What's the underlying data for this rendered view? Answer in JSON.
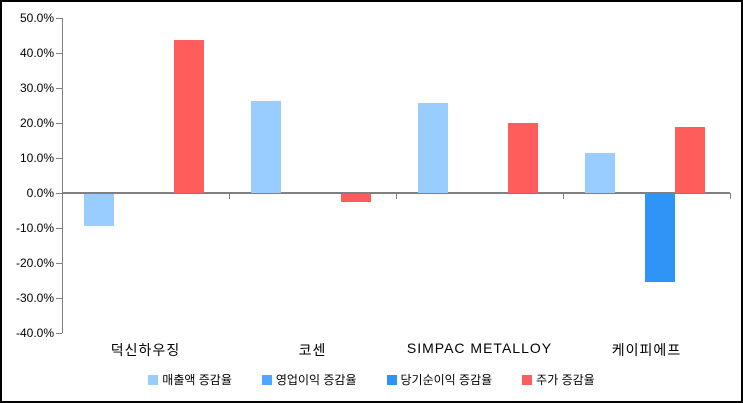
{
  "chart_data": {
    "type": "bar",
    "title": "",
    "xlabel": "",
    "ylabel": "",
    "categories": [
      "덕신하우징",
      "코센",
      "SIMPAC METALLOY",
      "케이피에프"
    ],
    "series": [
      {
        "name": "매출액 증감율",
        "color": "#99CCFF",
        "values": [
          -9.4,
          26.3,
          25.7,
          11.4
        ]
      },
      {
        "name": "영업이익 증감율",
        "color": "#4DA6FF",
        "values": [
          null,
          null,
          null,
          null
        ]
      },
      {
        "name": "당기순이익 증감율",
        "color": "#2E95F7",
        "values": [
          null,
          null,
          null,
          -25.4
        ]
      },
      {
        "name": "주가 증감율",
        "color": "#FF5C5C",
        "values": [
          43.8,
          -2.3,
          20.0,
          18.8
        ]
      }
    ],
    "ylim": [
      -40,
      50
    ],
    "ytick_step": 10,
    "ytick_labels": [
      "50.0%",
      "40.0%",
      "30.0%",
      "20.0%",
      "10.0%",
      "0.0%",
      "-10.0%",
      "-20.0%",
      "-30.0%",
      "-40.0%"
    ],
    "grid": false,
    "legend_position": "bottom",
    "colors": {
      "axis": "#808080",
      "text": "#000000",
      "background": "#FFFFFF",
      "border": "#000000"
    }
  }
}
